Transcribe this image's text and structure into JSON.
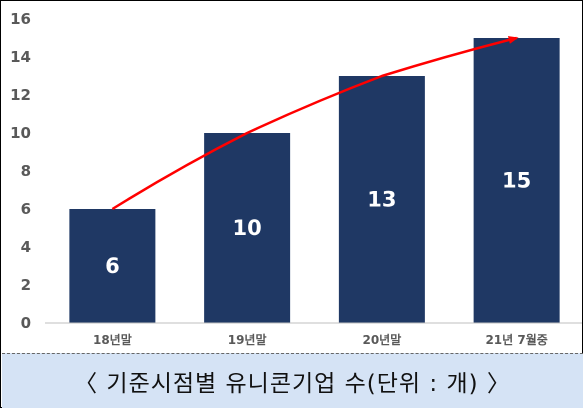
{
  "caption": "〈 기준시점별 유니콘기업 수(단위 : 개) 〉",
  "colors": {
    "bar": "#1f3864",
    "trend": "#ff0000",
    "label": "#ffffff",
    "axis": "#595959",
    "caption_bg": "#d5e3f5"
  },
  "chart_data": {
    "type": "bar",
    "categories": [
      "18년말",
      "19년말",
      "20년말",
      "21년 7월중"
    ],
    "values": [
      6,
      10,
      13,
      15
    ],
    "ylim": [
      0,
      16
    ],
    "yticks": [
      0,
      2,
      4,
      6,
      8,
      10,
      12,
      14,
      16
    ],
    "data_labels": true,
    "trend_arrow": true,
    "grid": false
  }
}
